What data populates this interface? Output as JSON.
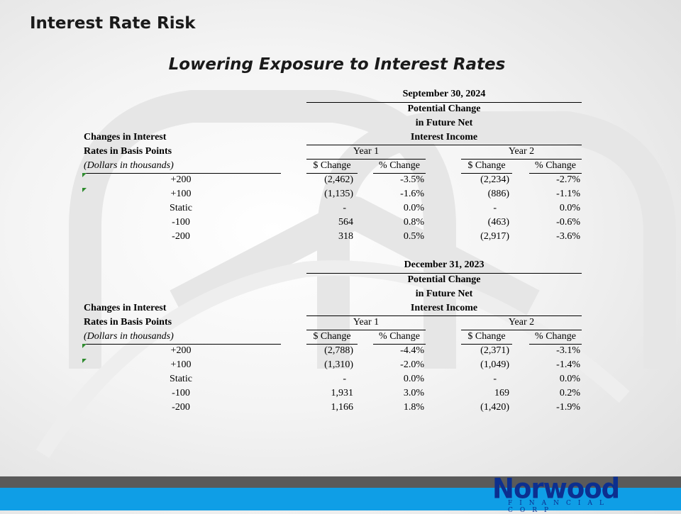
{
  "slide": {
    "title": "Interest Rate Risk",
    "subtitle": "Lowering Exposure to Interest Rates"
  },
  "colors": {
    "bar_dark": "#5a5a5a",
    "bar_blue": "#0f9ee6",
    "logo": "#0c2f8f",
    "marker": "#2e8b2e"
  },
  "tables": [
    {
      "date": "September 30, 2024",
      "header_line1": "Potential Change",
      "header_line2": "in Future Net",
      "header_line3": "Interest Income",
      "row_label_1": "Changes in Interest",
      "row_label_2": "Rates in Basis Points",
      "row_label_3": "(Dollars in thousands)",
      "year1": "Year 1",
      "year2": "Year 2",
      "col_dollar": "$ Change",
      "col_pct": "% Change",
      "rows": [
        {
          "rate": "+200",
          "y1d": "(2,462)",
          "y1p": "-3.5%",
          "y2d": "(2,234)",
          "y2p": "-2.7%"
        },
        {
          "rate": "+100",
          "y1d": "(1,135)",
          "y1p": "-1.6%",
          "y2d": "(886)",
          "y2p": "-1.1%"
        },
        {
          "rate": "Static",
          "y1d": "-",
          "y1p": "0.0%",
          "y2d": "-",
          "y2p": "0.0%"
        },
        {
          "rate": "-100",
          "y1d": "564",
          "y1p": "0.8%",
          "y2d": "(463)",
          "y2p": "-0.6%"
        },
        {
          "rate": "-200",
          "y1d": "318",
          "y1p": "0.5%",
          "y2d": "(2,917)",
          "y2p": "-3.6%"
        }
      ]
    },
    {
      "date": "December 31, 2023",
      "header_line1": "Potential Change",
      "header_line2": "in Future Net",
      "header_line3": "Interest Income",
      "row_label_1": "Changes in Interest",
      "row_label_2": "Rates in Basis Points",
      "row_label_3": "(Dollars in thousands)",
      "year1": "Year 1",
      "year2": "Year 2",
      "col_dollar": "$ Change",
      "col_pct": "% Change",
      "rows": [
        {
          "rate": "+200",
          "y1d": "(2,788)",
          "y1p": "-4.4%",
          "y2d": "(2,371)",
          "y2p": "-3.1%"
        },
        {
          "rate": "+100",
          "y1d": "(1,310)",
          "y1p": "-2.0%",
          "y2d": "(1,049)",
          "y2p": "-1.4%"
        },
        {
          "rate": "Static",
          "y1d": "-",
          "y1p": "0.0%",
          "y2d": "-",
          "y2p": "0.0%"
        },
        {
          "rate": "-100",
          "y1d": "1,931",
          "y1p": "3.0%",
          "y2d": "169",
          "y2p": "0.2%"
        },
        {
          "rate": "-200",
          "y1d": "1,166",
          "y1p": "1.8%",
          "y2d": "(1,420)",
          "y2p": "-1.9%"
        }
      ]
    }
  ],
  "footer": {
    "logo_name": "Norwood",
    "logo_subtitle": "FINANCIAL CORP"
  }
}
